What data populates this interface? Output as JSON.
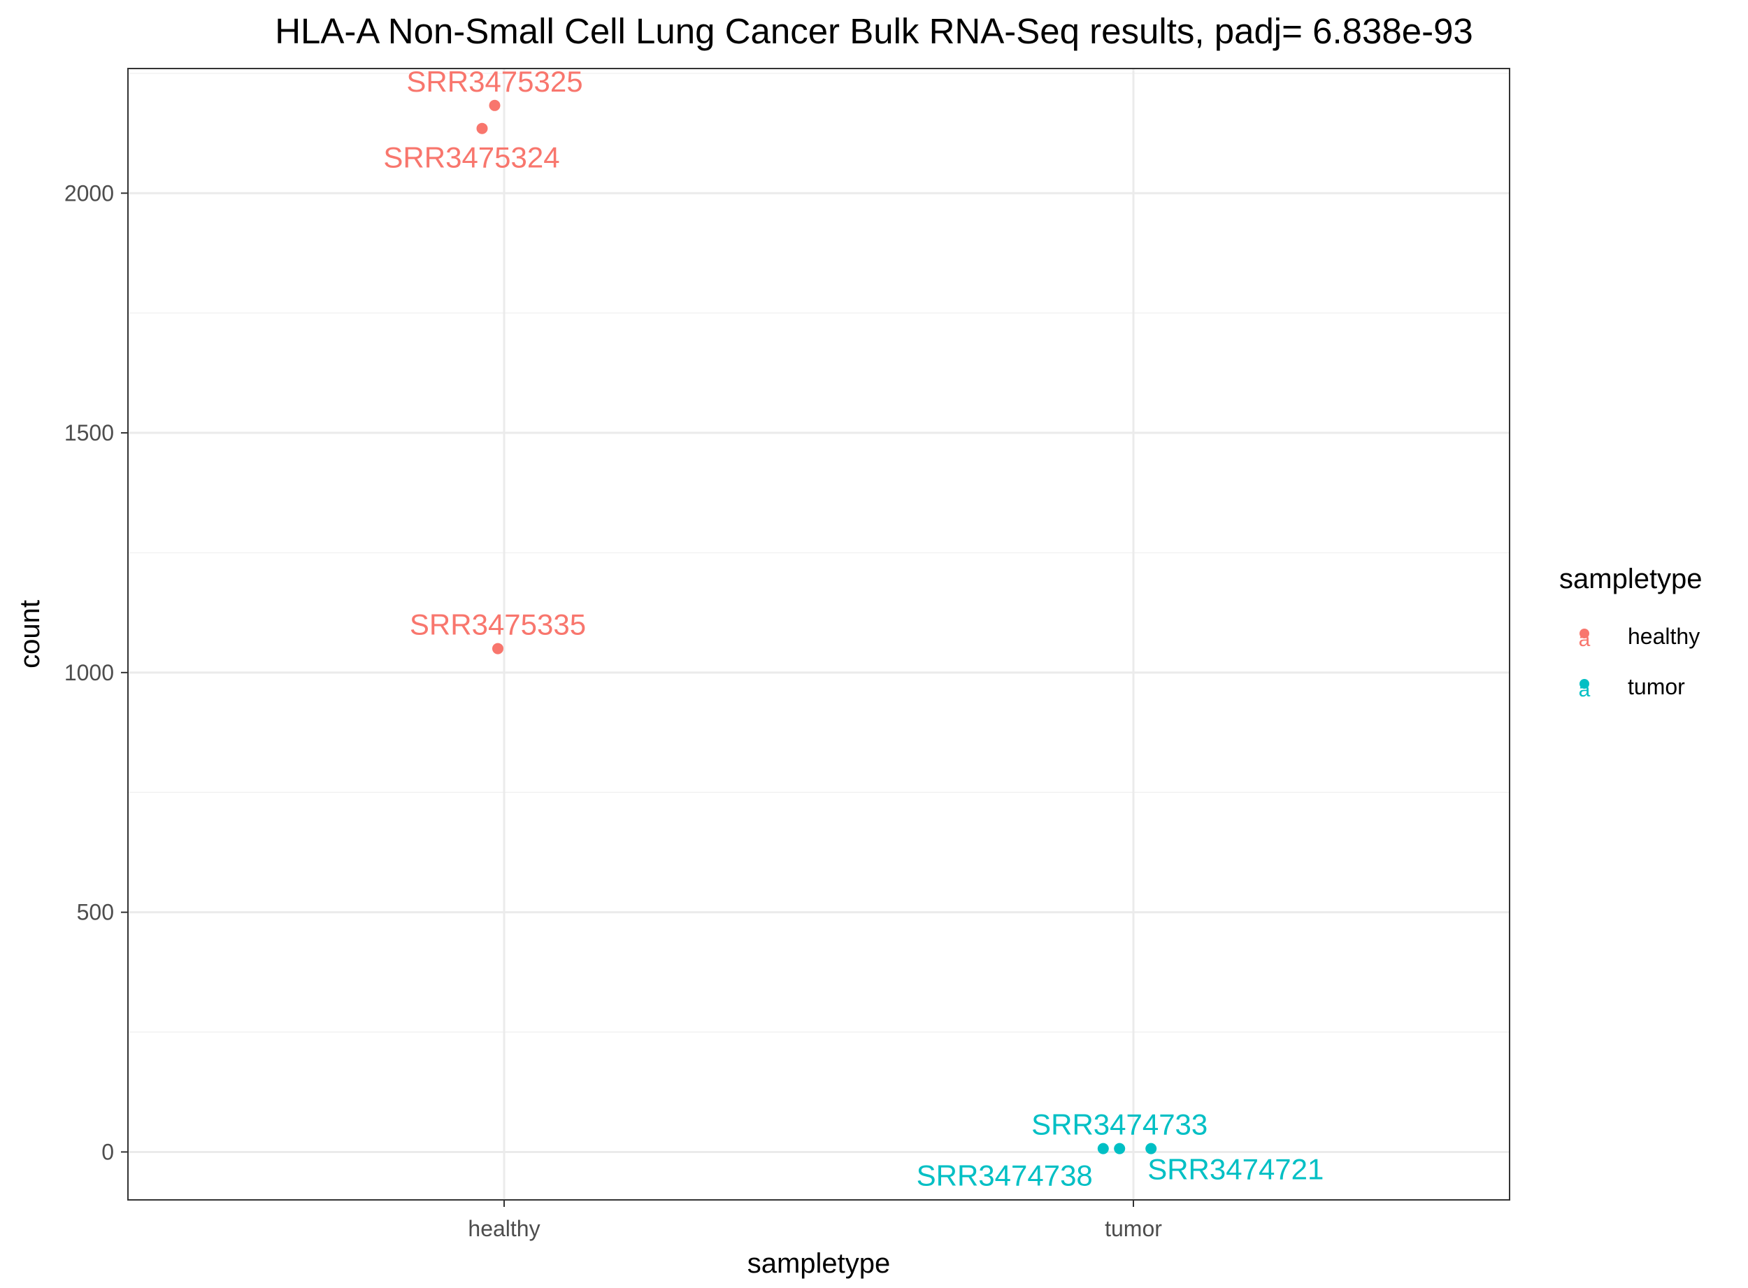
{
  "colors": {
    "healthy": "#f8766d",
    "tumor": "#00bfc4",
    "grid_major": "#ebebeb",
    "grid_minor": "#f2f2f2",
    "panel_border": "#333333",
    "tick_text": "#4d4d4d"
  },
  "chart_data": {
    "type": "scatter",
    "title": "HLA-A Non-Small Cell Lung Cancer Bulk RNA-Seq results, padj= 6.838e-93",
    "xlabel": "sampletype",
    "ylabel": "count",
    "categories": [
      "healthy",
      "tumor"
    ],
    "ylim": [
      -100,
      2260
    ],
    "yticks": [
      0,
      500,
      1000,
      1500,
      2000
    ],
    "grid": true,
    "legend": {
      "title": "sampletype",
      "position": "right",
      "entries": [
        "healthy",
        "tumor"
      ],
      "key_glyph": "a"
    },
    "points": [
      {
        "label": "SRR3475325",
        "category": "healthy",
        "jitter": -0.015,
        "y": 2183,
        "label_position": "above"
      },
      {
        "label": "SRR3475324",
        "category": "healthy",
        "jitter": -0.035,
        "y": 2135,
        "label_position": "below"
      },
      {
        "label": "SRR3475335",
        "category": "healthy",
        "jitter": -0.01,
        "y": 1050,
        "label_position": "above"
      },
      {
        "label": "SRR3474733",
        "category": "tumor",
        "jitter": -0.022,
        "y": 7,
        "label_position": "above"
      },
      {
        "label": "SRR3474738",
        "category": "tumor",
        "jitter": -0.048,
        "y": 7,
        "label_position": "below-left"
      },
      {
        "label": "SRR3474721",
        "category": "tumor",
        "jitter": 0.028,
        "y": 7,
        "label_position": "below-right"
      }
    ]
  }
}
